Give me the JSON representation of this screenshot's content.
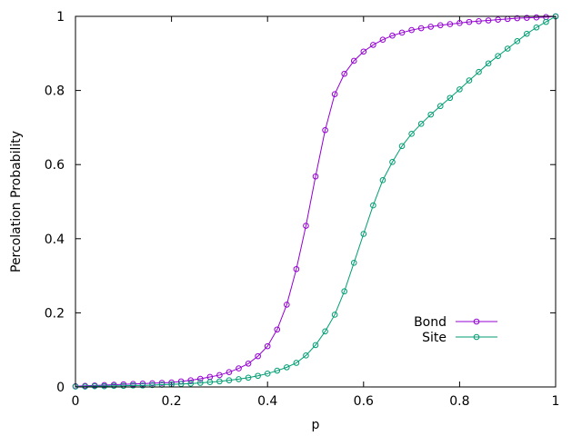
{
  "chart_data": {
    "type": "line",
    "title": "",
    "xlabel": "p",
    "ylabel": "Percolation Probability",
    "xlim": [
      0,
      1
    ],
    "ylim": [
      0,
      1
    ],
    "xticks": [
      0,
      0.2,
      0.4,
      0.6,
      0.8,
      1
    ],
    "yticks": [
      0,
      0.2,
      0.4,
      0.6,
      0.8,
      1
    ],
    "xtick_labels": [
      "0",
      "0.2",
      "0.4",
      "0.6",
      "0.8",
      "1"
    ],
    "ytick_labels": [
      "0",
      "0.2",
      "0.4",
      "0.6",
      "0.8",
      "1"
    ],
    "grid": false,
    "legend_position": "bottom-right",
    "x": [
      0,
      0.02,
      0.04,
      0.06,
      0.08,
      0.1,
      0.12,
      0.14,
      0.16,
      0.18,
      0.2,
      0.22,
      0.24,
      0.26,
      0.28,
      0.3,
      0.32,
      0.34,
      0.36,
      0.38,
      0.4,
      0.42,
      0.44,
      0.46,
      0.48,
      0.5,
      0.52,
      0.54,
      0.56,
      0.58,
      0.6,
      0.62,
      0.64,
      0.66,
      0.68,
      0.7,
      0.72,
      0.74,
      0.76,
      0.78,
      0.8,
      0.82,
      0.84,
      0.86,
      0.88,
      0.9,
      0.92,
      0.94,
      0.96,
      0.98,
      1
    ],
    "series": [
      {
        "name": "Bond",
        "color": "#9400d3",
        "values": [
          0.002,
          0.003,
          0.004,
          0.005,
          0.006,
          0.007,
          0.008,
          0.009,
          0.01,
          0.011,
          0.012,
          0.015,
          0.018,
          0.022,
          0.027,
          0.032,
          0.04,
          0.05,
          0.063,
          0.083,
          0.11,
          0.155,
          0.222,
          0.318,
          0.435,
          0.568,
          0.693,
          0.79,
          0.845,
          0.88,
          0.905,
          0.923,
          0.937,
          0.948,
          0.956,
          0.963,
          0.968,
          0.972,
          0.976,
          0.979,
          0.982,
          0.985,
          0.987,
          0.989,
          0.991,
          0.993,
          0.995,
          0.996,
          0.997,
          0.998,
          1.0
        ]
      },
      {
        "name": "Site",
        "color": "#009e73",
        "values": [
          0.001,
          0.001,
          0.002,
          0.002,
          0.003,
          0.003,
          0.004,
          0.004,
          0.005,
          0.006,
          0.007,
          0.008,
          0.009,
          0.011,
          0.013,
          0.015,
          0.018,
          0.021,
          0.025,
          0.03,
          0.036,
          0.044,
          0.053,
          0.065,
          0.085,
          0.113,
          0.15,
          0.195,
          0.258,
          0.335,
          0.413,
          0.49,
          0.558,
          0.607,
          0.65,
          0.683,
          0.71,
          0.735,
          0.758,
          0.78,
          0.803,
          0.827,
          0.85,
          0.873,
          0.893,
          0.913,
          0.933,
          0.953,
          0.97,
          0.985,
          1.0
        ]
      }
    ]
  }
}
